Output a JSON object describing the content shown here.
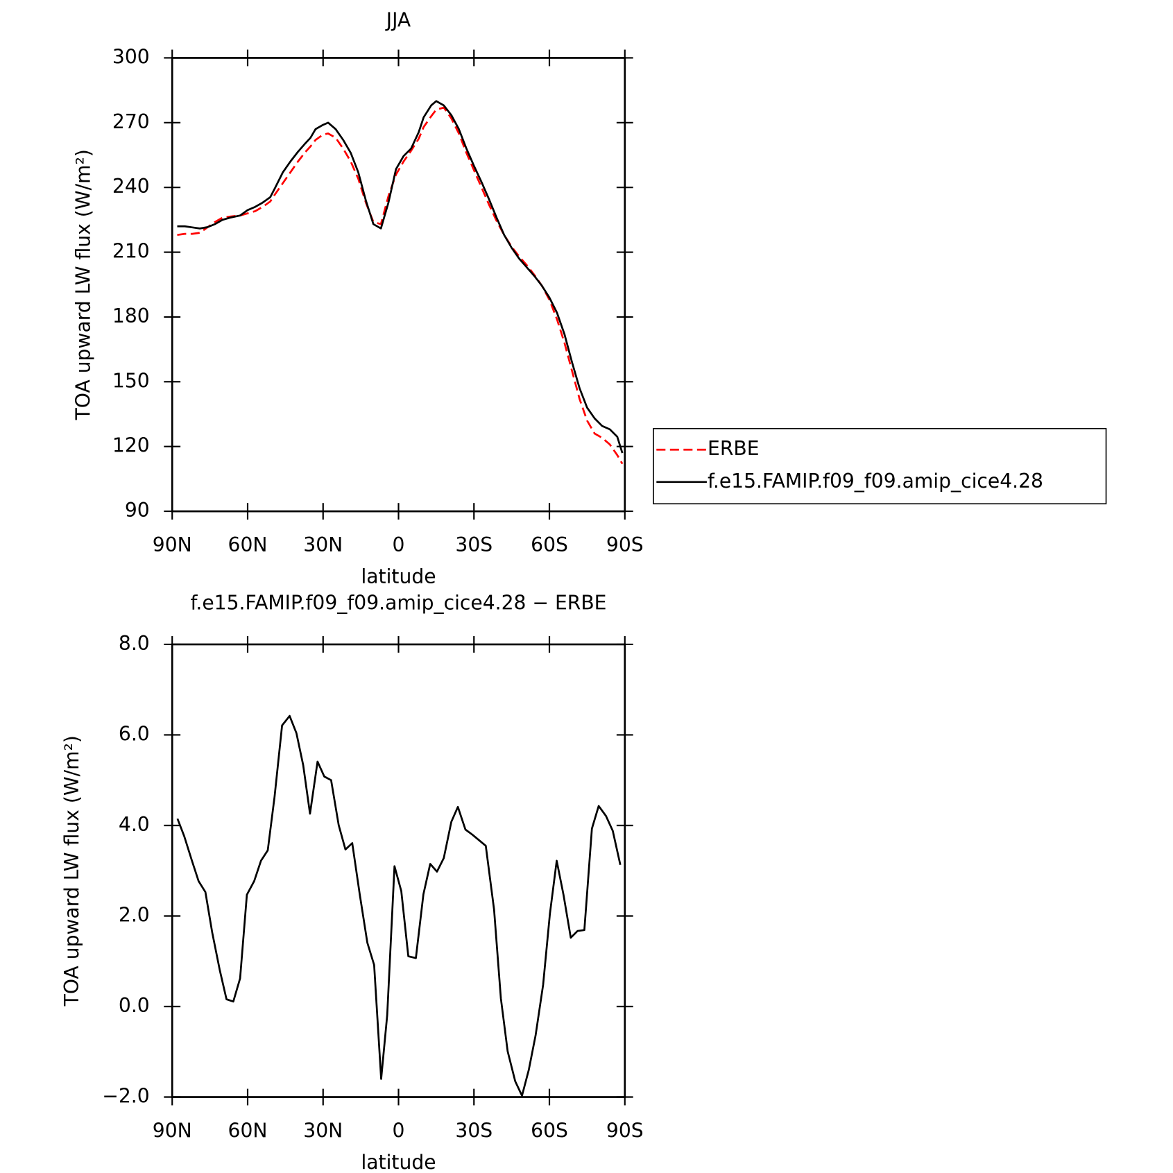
{
  "chart_data": [
    {
      "type": "line",
      "title": "JJA",
      "xlabel": "latitude",
      "ylabel": "TOA upward LW flux (W/m²)",
      "x": [
        88,
        85,
        82,
        79,
        76,
        73,
        70,
        67,
        63,
        60,
        57,
        54,
        51,
        49,
        46,
        43,
        40,
        37,
        35,
        33,
        30,
        28,
        25,
        22,
        19,
        16,
        13,
        10,
        7,
        4,
        1,
        -2,
        -5,
        -8,
        -10,
        -13,
        -15,
        -18,
        -21,
        -24,
        -27,
        -30,
        -33,
        -36,
        -39,
        -42,
        -45,
        -48,
        -51,
        -54,
        -57,
        -60,
        -63,
        -66,
        -69,
        -72,
        -75,
        -78,
        -81,
        -84,
        -87,
        -89
      ],
      "series": [
        {
          "name": "ERBE",
          "color": "#ff0000",
          "linestyle": "dashed",
          "values": [
            218,
            218.5,
            218.5,
            219,
            221.5,
            224,
            226,
            226.5,
            227,
            228,
            229,
            231,
            233.5,
            237,
            242,
            247,
            252,
            256.5,
            259,
            262,
            264.5,
            265,
            263,
            258,
            252,
            244,
            233,
            224,
            223,
            236,
            246,
            252,
            257,
            262.5,
            268,
            273,
            276,
            277,
            272,
            265,
            256,
            248,
            240,
            232,
            224.5,
            218,
            212.5,
            208,
            204,
            199.5,
            194.5,
            188,
            179,
            168,
            155,
            142,
            132,
            126,
            124,
            121,
            116,
            112
          ]
        },
        {
          "name": "f.e15.FAMIP.f09_f09.amip_cice4.28",
          "color": "#000000",
          "linestyle": "solid",
          "values": [
            222,
            222,
            221.5,
            221,
            221.6,
            223,
            225,
            226,
            227,
            229.5,
            231,
            233,
            235.5,
            240,
            247,
            252,
            256.5,
            260.5,
            263,
            267,
            269,
            270,
            267,
            262,
            256,
            247,
            234,
            223,
            221,
            233,
            248.5,
            254.5,
            258,
            265.5,
            272.5,
            278,
            280,
            278,
            273.5,
            267,
            258,
            250,
            242.5,
            234.5,
            226,
            218,
            212,
            207,
            203,
            199,
            194.5,
            189,
            182,
            172,
            159,
            147,
            138,
            133,
            129.5,
            128,
            124.5,
            117
          ]
        }
      ],
      "xlim": [
        90,
        -90
      ],
      "xticks": [
        {
          "value": 90,
          "label": "90N"
        },
        {
          "value": 60,
          "label": "60N"
        },
        {
          "value": 30,
          "label": "30N"
        },
        0,
        {
          "value": -30,
          "label": "30S"
        },
        {
          "value": -60,
          "label": "60S"
        },
        {
          "value": -90,
          "label": "90S"
        }
      ],
      "ylim": [
        90,
        300
      ],
      "yticks": [
        90,
        120,
        150,
        180,
        210,
        240,
        270,
        300
      ],
      "legend": "right"
    },
    {
      "type": "line",
      "title": "f.e15.FAMIP.f09_f09.amip_cice4.28 − ERBE",
      "xlabel": "latitude",
      "ylabel": "TOA upward LW flux (W/m²)",
      "x": [
        87.9,
        85.2,
        82.2,
        79.5,
        76.8,
        74.1,
        71.1,
        68.4,
        65.7,
        63.0,
        60.3,
        57.4,
        54.7,
        52.0,
        49.3,
        46.3,
        43.3,
        40.6,
        37.9,
        35.2,
        32.2,
        29.5,
        26.8,
        23.8,
        21.1,
        18.4,
        15.4,
        12.4,
        9.7,
        6.9,
        4.5,
        1.6,
        -1.1,
        -3.9,
        -6.9,
        -9.9,
        -12.6,
        -15.3,
        -18.0,
        -21.0,
        -23.6,
        -26.6,
        -29.3,
        -34.7,
        -38.0,
        -40.7,
        -43.4,
        -46.4,
        -49.1,
        -51.8,
        -54.5,
        -57.5,
        -60.2,
        -62.9,
        -65.6,
        -68.5,
        -71.2,
        -73.9,
        -76.9,
        -79.6,
        -82.5,
        -85.2,
        -88.2
      ],
      "series": [
        {
          "color": "#000000",
          "linestyle": "solid",
          "values": [
            4.15,
            3.76,
            3.23,
            2.77,
            2.53,
            1.64,
            0.81,
            0.16,
            0.11,
            0.62,
            2.47,
            2.77,
            3.22,
            3.45,
            4.63,
            6.21,
            6.42,
            6.04,
            5.33,
            4.26,
            5.41,
            5.08,
            5.0,
            4.01,
            3.47,
            3.61,
            2.47,
            1.41,
            0.92,
            -1.6,
            -0.19,
            3.1,
            2.55,
            1.11,
            1.07,
            2.48,
            3.15,
            2.98,
            3.28,
            4.08,
            4.41,
            3.91,
            3.8,
            3.55,
            2.14,
            0.18,
            -0.99,
            -1.65,
            -1.97,
            -1.4,
            -0.64,
            0.48,
            2.05,
            3.22,
            2.47,
            1.52,
            1.67,
            1.69,
            3.93,
            4.43,
            4.21,
            3.88,
            3.13
          ]
        }
      ],
      "xlim": [
        90,
        -90
      ],
      "xticks": [
        {
          "value": 90,
          "label": "90N"
        },
        {
          "value": 60,
          "label": "60N"
        },
        {
          "value": 30,
          "label": "30N"
        },
        0,
        {
          "value": -30,
          "label": "30S"
        },
        {
          "value": -60,
          "label": "60S"
        },
        {
          "value": -90,
          "label": "90S"
        }
      ],
      "ylim": [
        -2,
        8
      ],
      "yticks": [
        {
          "value": -2,
          "label": "−2.0"
        },
        {
          "value": 0,
          "label": "0.0"
        },
        {
          "value": 2,
          "label": "2.0"
        },
        {
          "value": 4,
          "label": "4.0"
        },
        {
          "value": 6,
          "label": "6.0"
        },
        {
          "value": 8,
          "label": "8.0"
        }
      ]
    }
  ]
}
